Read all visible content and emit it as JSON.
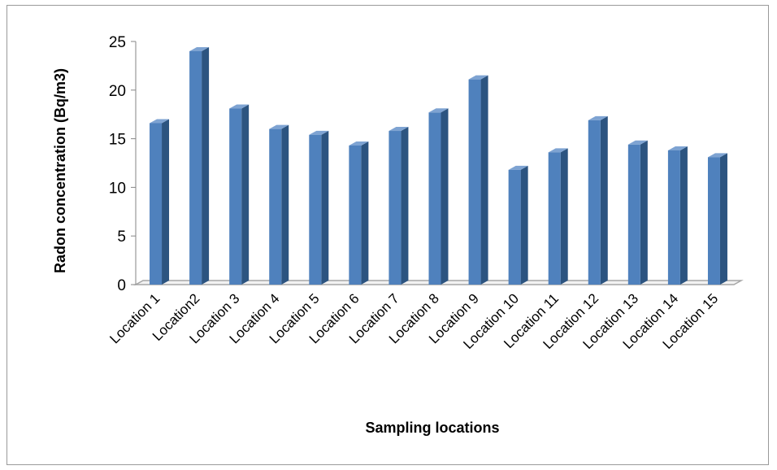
{
  "chart_data": {
    "type": "bar",
    "title": "",
    "xlabel": "Sampling locations",
    "ylabel": "Radon concentration (Bq/m3)",
    "ylim": [
      0,
      25
    ],
    "yticks": [
      0,
      5,
      10,
      15,
      20,
      25
    ],
    "grid": false,
    "legend": "none",
    "categories": [
      "Location 1",
      "Location2",
      "Location 3",
      "Location 4",
      "Location 5",
      "Location 6",
      "Location 7",
      "Location 8",
      "Location 9",
      "Location 10",
      "Location 11",
      "Location 12",
      "Location 13",
      "Location 14",
      "Location 15"
    ],
    "values": [
      16.6,
      24.0,
      18.1,
      16.0,
      15.4,
      14.3,
      15.8,
      17.7,
      21.1,
      11.8,
      13.6,
      16.9,
      14.4,
      13.8,
      13.1
    ],
    "colors": {
      "bar_front": "#4F81BD",
      "bar_side": "#2C5480",
      "bar_top": "#7EA3D2",
      "floor": "#A6A6A6"
    }
  }
}
